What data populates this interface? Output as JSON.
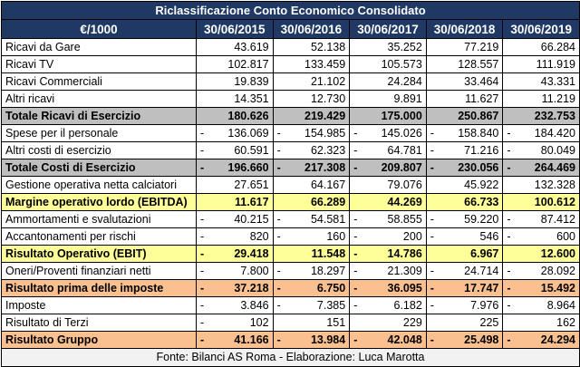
{
  "table": {
    "title": "Riclassificazione Conto Economico Consolidato",
    "headers": [
      "€/1000",
      "30/06/2015",
      "30/06/2016",
      "30/06/2017",
      "30/06/2018",
      "30/06/2019"
    ],
    "rows": [
      {
        "label": "Ricavi da Gare",
        "values": [
          "43.619",
          "52.138",
          "35.252",
          "77.219",
          "66.284"
        ],
        "style": "plain"
      },
      {
        "label": "Ricavi TV",
        "values": [
          "102.817",
          "133.459",
          "105.573",
          "128.557",
          "111.919"
        ],
        "style": "plain"
      },
      {
        "label": "Ricavi Commerciali",
        "values": [
          "19.839",
          "21.102",
          "24.284",
          "33.464",
          "43.331"
        ],
        "style": "plain"
      },
      {
        "label": "Altri ricavi",
        "values": [
          "14.351",
          "12.730",
          "9.891",
          "11.627",
          "11.219"
        ],
        "style": "plain"
      },
      {
        "label": "Totale Ricavi di Esercizio",
        "values": [
          "180.626",
          "219.429",
          "175.000",
          "250.867",
          "232.753"
        ],
        "style": "gray"
      },
      {
        "label": "Spese per il personale",
        "values": [
          "- 136.069",
          "- 154.985",
          "- 145.026",
          "- 158.840",
          "- 184.420"
        ],
        "style": "plain"
      },
      {
        "label": "Altri costi di esercizio",
        "values": [
          "- 60.591",
          "- 62.323",
          "- 64.781",
          "- 71.216",
          "- 80.049"
        ],
        "style": "plain"
      },
      {
        "label": "Totale Costi di Esercizio",
        "values": [
          "- 196.660",
          "- 217.308",
          "- 209.807",
          "- 230.056",
          "- 264.469"
        ],
        "style": "gray"
      },
      {
        "label": "Gestione operativa netta calciatori",
        "values": [
          "27.651",
          "64.167",
          "79.076",
          "45.922",
          "132.328"
        ],
        "style": "plain"
      },
      {
        "label": "Margine operativo lordo (EBITDA)",
        "values": [
          "11.617",
          "66.289",
          "44.269",
          "66.733",
          "100.612"
        ],
        "style": "yellow"
      },
      {
        "label": "Ammortamenti e svalutazioni",
        "values": [
          "- 40.215",
          "- 54.581",
          "- 58.855",
          "- 59.220",
          "- 87.412"
        ],
        "style": "plain"
      },
      {
        "label": "Accantonamenti per rischi",
        "values": [
          "- 820",
          "- 160",
          "- 200",
          "- 546",
          "- 600"
        ],
        "style": "plain"
      },
      {
        "label": "Risultato Operativo (EBIT)",
        "values": [
          "- 29.418",
          "11.548",
          "- 14.786",
          "6.967",
          "12.600"
        ],
        "style": "yellow"
      },
      {
        "label": "Oneri/Proventi finanziari netti",
        "values": [
          "- 7.800",
          "- 18.297",
          "- 21.309",
          "- 24.714",
          "- 28.092"
        ],
        "style": "plain"
      },
      {
        "label": "Risultato prima delle imposte",
        "values": [
          "- 37.218",
          "- 6.750",
          "- 36.095",
          "- 17.747",
          "- 15.492"
        ],
        "style": "orange"
      },
      {
        "label": "Imposte",
        "values": [
          "- 3.846",
          "- 7.385",
          "- 6.182",
          "- 7.976",
          "- 8.964"
        ],
        "style": "plain"
      },
      {
        "label": "Risultato di Terzi",
        "values": [
          "- 102",
          "151",
          "229",
          "225",
          "162"
        ],
        "style": "plain"
      },
      {
        "label": "Risultato Gruppo",
        "values": [
          "- 41.166",
          "- 13.984",
          "- 42.048",
          "- 25.498",
          "- 24.294"
        ],
        "style": "orange"
      }
    ],
    "source": "Fonte: Bilanci AS Roma   -   Elaborazione: Luca Marotta"
  },
  "colors": {
    "header_bg": "#1f3864",
    "total_gray": "#bfbfbf",
    "margin_yellow": "#ffff99",
    "result_orange": "#fac090"
  }
}
